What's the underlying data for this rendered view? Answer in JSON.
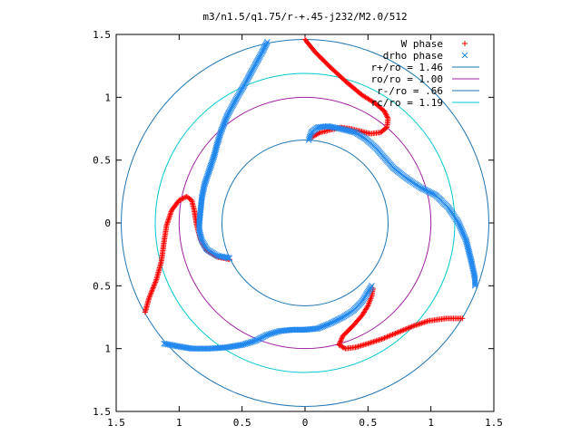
{
  "chart_data": {
    "type": "scatter",
    "title": "m3/n1.5/q1.75/r-+.45-j232/M2.0/512",
    "xlabel": "",
    "ylabel": "",
    "xlim": [
      -1.5,
      1.5
    ],
    "ylim": [
      -1.5,
      1.5
    ],
    "x_ticks": [
      -1.5,
      -1,
      -0.5,
      0,
      0.5,
      1,
      1.5
    ],
    "x_tick_labels": [
      "1.5",
      "1",
      "0.5",
      "0",
      "0.5",
      "1",
      "1.5"
    ],
    "y_ticks": [
      1.5,
      1,
      0.5,
      0,
      -0.5,
      -1,
      -1.5
    ],
    "y_tick_labels": [
      "1.5",
      "1",
      "0.5",
      "0",
      "0.5",
      "1",
      "1.5"
    ],
    "grid": false,
    "legend_position": "top-right",
    "series": [
      {
        "name": "W phase",
        "marker": "plus",
        "color": "#ff0000",
        "curves": [
          [
            [
              0.0,
              1.46
            ],
            [
              0.08,
              1.36
            ],
            [
              0.2,
              1.24
            ],
            [
              0.33,
              1.12
            ],
            [
              0.45,
              1.02
            ],
            [
              0.56,
              0.95
            ],
            [
              0.63,
              0.89
            ],
            [
              0.66,
              0.83
            ],
            [
              0.65,
              0.76
            ],
            [
              0.6,
              0.72
            ],
            [
              0.52,
              0.71
            ],
            [
              0.44,
              0.73
            ],
            [
              0.36,
              0.75
            ],
            [
              0.28,
              0.76
            ],
            [
              0.2,
              0.74
            ],
            [
              0.12,
              0.72
            ],
            [
              0.05,
              0.68
            ]
          ],
          [
            [
              -1.27,
              -0.71
            ],
            [
              -1.24,
              -0.6
            ],
            [
              -1.18,
              -0.45
            ],
            [
              -1.14,
              -0.3
            ],
            [
              -1.12,
              -0.15
            ],
            [
              -1.1,
              -0.02
            ],
            [
              -1.06,
              0.1
            ],
            [
              -1.0,
              0.18
            ],
            [
              -0.94,
              0.21
            ],
            [
              -0.9,
              0.18
            ],
            [
              -0.88,
              0.1
            ],
            [
              -0.86,
              -0.02
            ],
            [
              -0.83,
              -0.13
            ],
            [
              -0.78,
              -0.22
            ],
            [
              -0.7,
              -0.27
            ],
            [
              -0.6,
              -0.29
            ]
          ],
          [
            [
              1.25,
              -0.76
            ],
            [
              1.12,
              -0.76
            ],
            [
              0.98,
              -0.78
            ],
            [
              0.86,
              -0.82
            ],
            [
              0.74,
              -0.87
            ],
            [
              0.62,
              -0.92
            ],
            [
              0.5,
              -0.96
            ],
            [
              0.4,
              -0.99
            ],
            [
              0.32,
              -1.0
            ],
            [
              0.27,
              -0.97
            ],
            [
              0.3,
              -0.9
            ],
            [
              0.38,
              -0.82
            ],
            [
              0.45,
              -0.74
            ],
            [
              0.5,
              -0.66
            ],
            [
              0.53,
              -0.58
            ],
            [
              0.54,
              -0.52
            ]
          ]
        ]
      },
      {
        "name": "drho phase",
        "marker": "cross",
        "color": "#2288ee",
        "curves": [
          [
            [
              -0.3,
              1.44
            ],
            [
              -0.34,
              1.36
            ],
            [
              -0.4,
              1.25
            ],
            [
              -0.47,
              1.12
            ],
            [
              -0.55,
              0.98
            ],
            [
              -0.62,
              0.85
            ],
            [
              -0.67,
              0.72
            ],
            [
              -0.7,
              0.62
            ],
            [
              -0.72,
              0.54
            ],
            [
              -0.76,
              0.42
            ],
            [
              -0.8,
              0.3
            ],
            [
              -0.82,
              0.2
            ],
            [
              -0.83,
              0.1
            ],
            [
              -0.84,
              0.0
            ],
            [
              -0.84,
              -0.06
            ],
            [
              -0.82,
              -0.14
            ],
            [
              -0.78,
              -0.21
            ],
            [
              -0.7,
              -0.26
            ],
            [
              -0.6,
              -0.28
            ]
          ],
          [
            [
              0.03,
              0.66
            ],
            [
              0.05,
              0.72
            ],
            [
              0.1,
              0.76
            ],
            [
              0.18,
              0.77
            ],
            [
              0.28,
              0.75
            ],
            [
              0.4,
              0.72
            ],
            [
              0.48,
              0.67
            ],
            [
              0.56,
              0.6
            ],
            [
              0.63,
              0.52
            ],
            [
              0.7,
              0.44
            ],
            [
              0.8,
              0.36
            ],
            [
              0.92,
              0.28
            ],
            [
              1.04,
              0.22
            ],
            [
              1.14,
              0.12
            ],
            [
              1.22,
              0.0
            ],
            [
              1.28,
              -0.14
            ],
            [
              1.32,
              -0.3
            ],
            [
              1.35,
              -0.44
            ],
            [
              1.35,
              -0.5
            ]
          ],
          [
            [
              -1.12,
              -0.96
            ],
            [
              -1.02,
              -0.98
            ],
            [
              -0.9,
              -1.0
            ],
            [
              -0.76,
              -1.0
            ],
            [
              -0.62,
              -0.99
            ],
            [
              -0.5,
              -0.97
            ],
            [
              -0.4,
              -0.94
            ],
            [
              -0.3,
              -0.89
            ],
            [
              -0.2,
              -0.86
            ],
            [
              -0.1,
              -0.85
            ],
            [
              0.0,
              -0.85
            ],
            [
              0.1,
              -0.84
            ],
            [
              0.2,
              -0.8
            ],
            [
              0.3,
              -0.75
            ],
            [
              0.38,
              -0.7
            ],
            [
              0.45,
              -0.63
            ],
            [
              0.5,
              -0.55
            ],
            [
              0.53,
              -0.5
            ]
          ]
        ]
      },
      {
        "name": "r+/ro = 1.46",
        "type": "circle",
        "radius": 1.46,
        "color": "#1f77b4"
      },
      {
        "name": "ro/ro = 1.00",
        "type": "circle",
        "radius": 1.0,
        "color": "#a020a0"
      },
      {
        "name": "r-/ro = .66",
        "type": "circle",
        "radius": 0.66,
        "color": "#1f77b4"
      },
      {
        "name": "rc/ro = 1.19",
        "type": "circle",
        "radius": 1.19,
        "color": "#00c8d0"
      }
    ]
  }
}
